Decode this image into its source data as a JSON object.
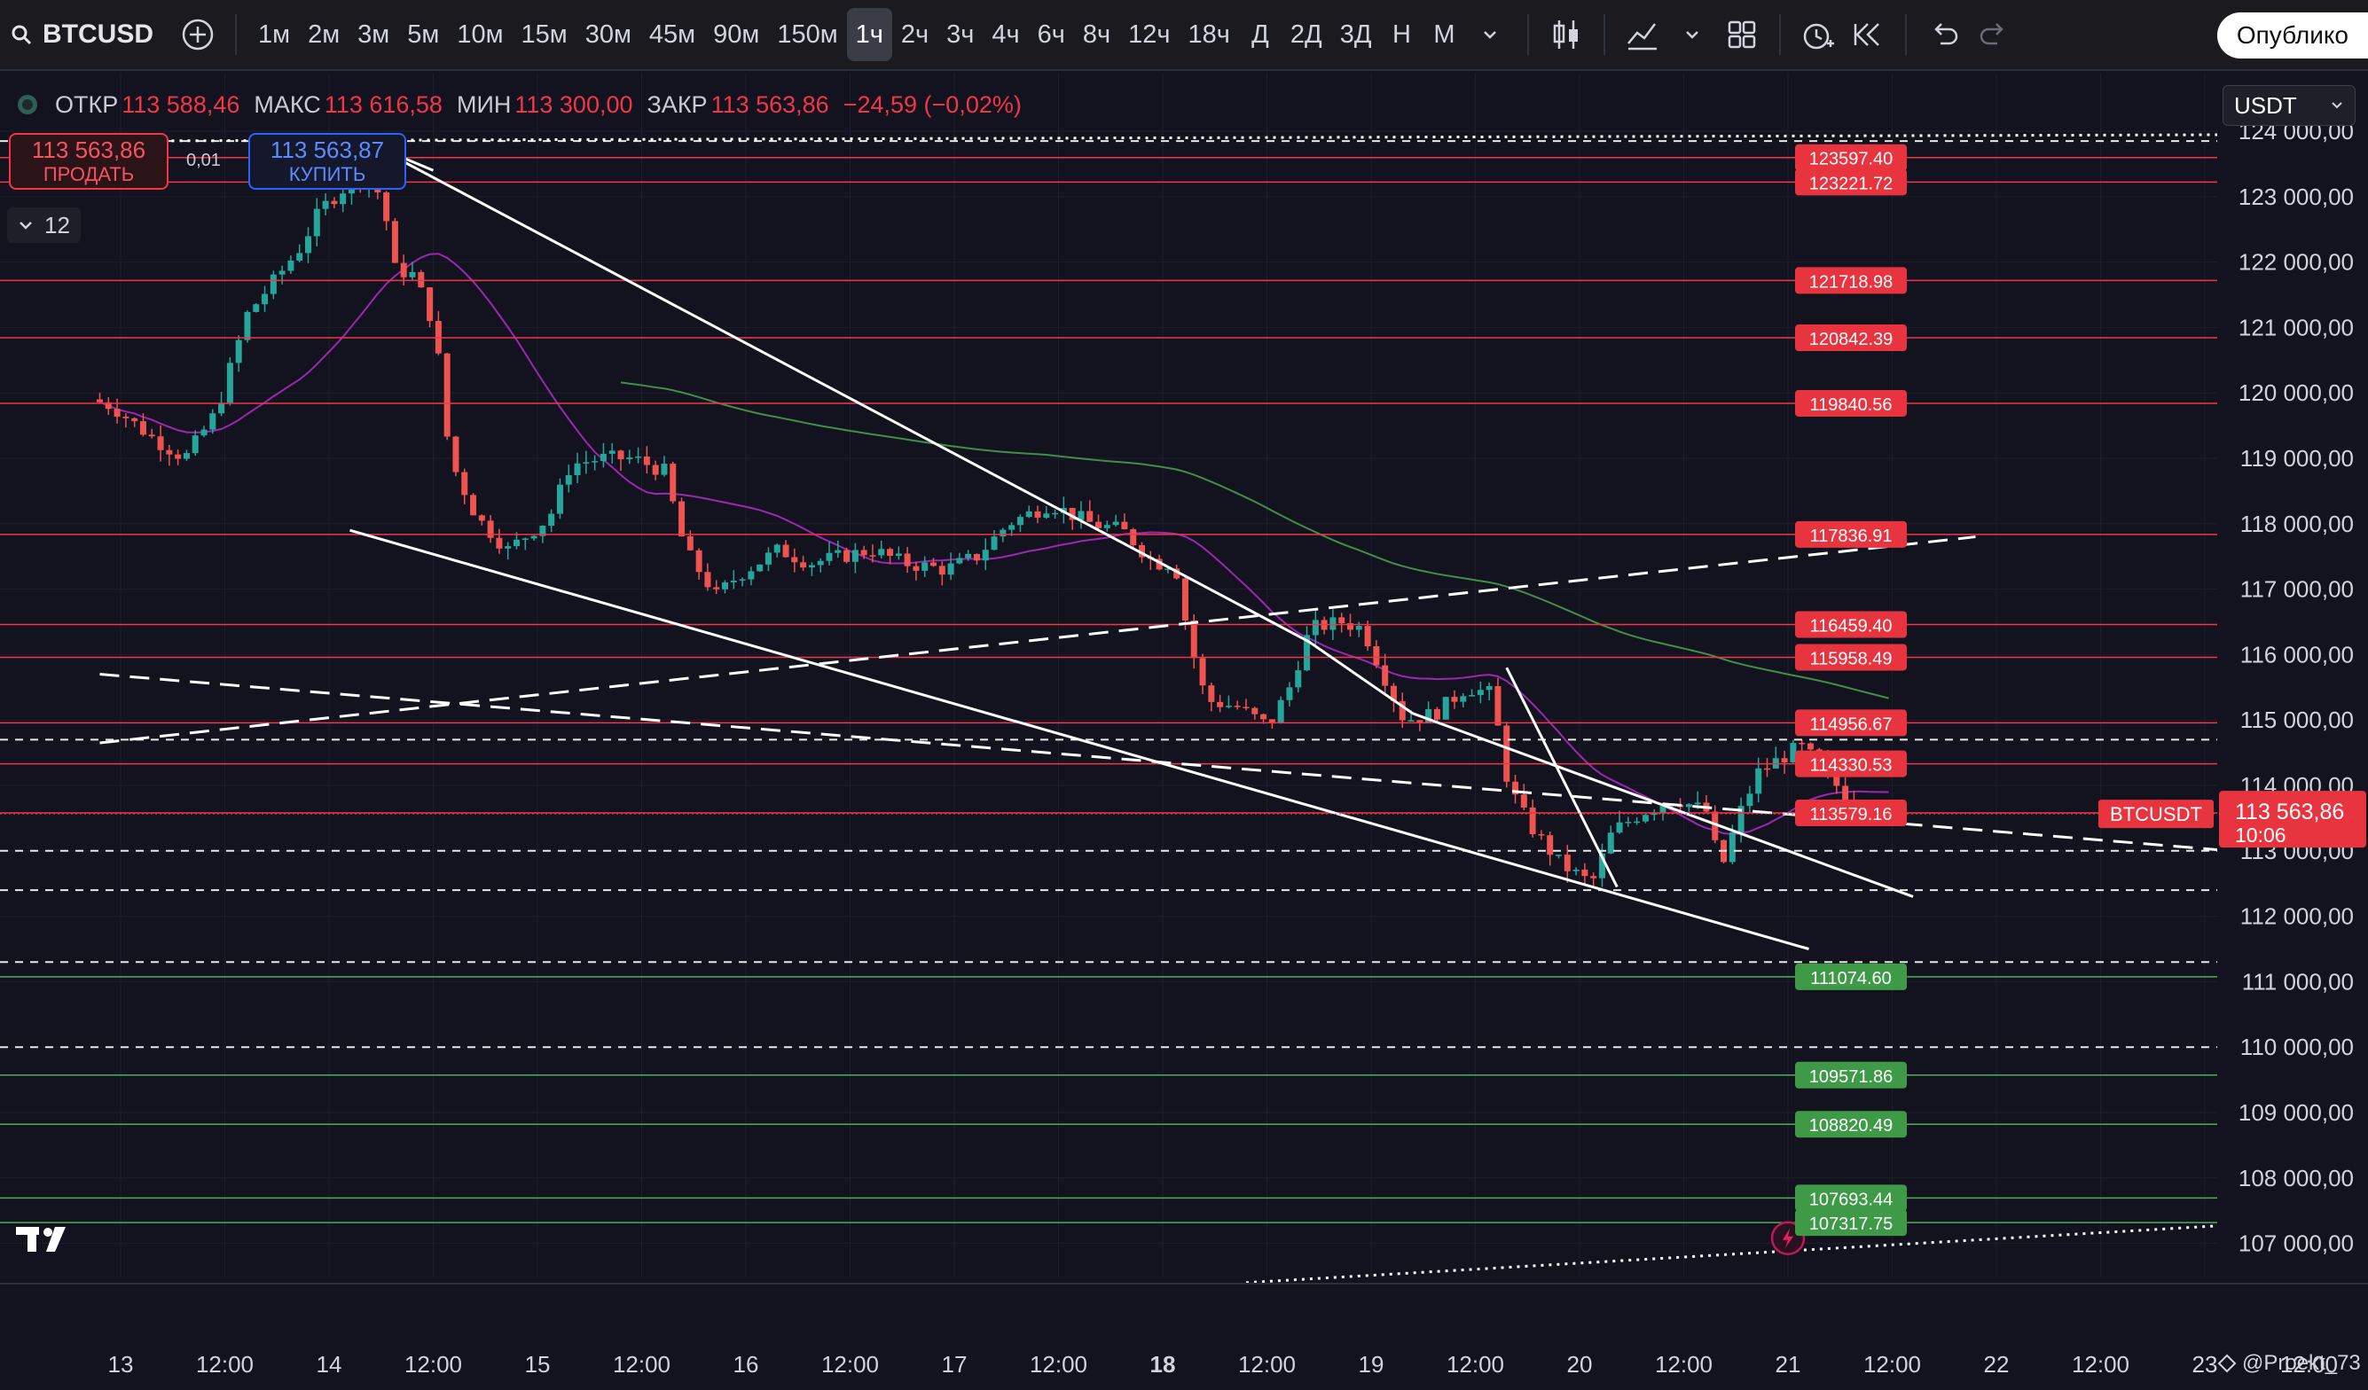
{
  "toolbar": {
    "symbol": "BTCUSD",
    "timeframes": [
      "1м",
      "2м",
      "3м",
      "5м",
      "10м",
      "15м",
      "30м",
      "45м",
      "90м",
      "150м",
      "1ч",
      "2ч",
      "3ч",
      "4ч",
      "6ч",
      "8ч",
      "12ч",
      "18ч",
      "Д",
      "2Д",
      "3Д",
      "Н",
      "М"
    ],
    "active_timeframe": "1ч",
    "publish_label": "Опублико"
  },
  "ohlc": {
    "open_label": "ОТКР",
    "open": "113 588,46",
    "high_label": "МАКС",
    "high": "113 616,58",
    "low_label": "МИН",
    "low": "113 300,00",
    "close_label": "ЗАКР",
    "close": "113 563,86",
    "change": "−24,59 (−0,02%)"
  },
  "trade": {
    "sell_price": "113 563,86",
    "sell_label": "ПРОДАТЬ",
    "buy_price": "113 563,87",
    "buy_label": "КУПИТЬ",
    "spread": "0,01"
  },
  "indicators_count": "12",
  "currency": "USDT",
  "watermark": "@Proekt_73",
  "colors": {
    "background": "#131320",
    "bull": "#26a69a",
    "bear": "#ef5350",
    "resistance": "#f23645",
    "support": "#4caf50",
    "ma_fast": "#9c27b0",
    "ma_slow": "#4caf50"
  },
  "chart_data": {
    "type": "candlestick",
    "price_axis": {
      "range": [
        106400,
        124300
      ],
      "ticks": [
        "124 000,00",
        "123 000,00",
        "122 000,00",
        "121 000,00",
        "120 000,00",
        "119 000,00",
        "118 000,00",
        "117 000,00",
        "116 000,00",
        "115 000,00",
        "114 000,00",
        "113 000,00",
        "112 000,00",
        "111 000,00",
        "110 000,00",
        "109 000,00",
        "108 000,00",
        "107 000,00"
      ],
      "tick_values": [
        124000,
        123000,
        122000,
        121000,
        120000,
        119000,
        118000,
        117000,
        116000,
        115000,
        114000,
        113000,
        112000,
        111000,
        110000,
        109000,
        108000,
        107000
      ]
    },
    "time_axis": {
      "labels": [
        "13",
        "12:00",
        "14",
        "12:00",
        "15",
        "12:00",
        "16",
        "12:00",
        "17",
        "12:00",
        "18",
        "12:00",
        "19",
        "12:00",
        "20",
        "12:00",
        "21",
        "12:00",
        "22",
        "12:00",
        "23",
        "12:00"
      ],
      "label_values": [
        13,
        13.5,
        14,
        14.5,
        15,
        15.5,
        16,
        16.5,
        17,
        17.5,
        18,
        18.5,
        19,
        19.5,
        20,
        20.5,
        21,
        21.5,
        22,
        22.5,
        23,
        23.5
      ],
      "bold": [
        "18"
      ]
    },
    "resistance_levels": [
      "123597.40",
      "123221.72",
      "121718.98",
      "120842.39",
      "119840.56",
      "117836.91",
      "116459.40",
      "115958.49",
      "114956.67",
      "114330.53",
      "113579.16"
    ],
    "support_levels": [
      "111074.60",
      "109571.86",
      "108820.49",
      "107693.44",
      "107317.75"
    ],
    "dashed_levels": [
      123850,
      114700,
      113000,
      112400,
      111300,
      110000
    ],
    "current_price": {
      "symbol": "BTCUSDT",
      "price": "113 563,86",
      "countdown": "10:06"
    },
    "trend_lines": [
      {
        "style": "solid",
        "points": [
          [
            14.2,
            123800
          ],
          [
            18.7,
            116200
          ],
          [
            19.2,
            115100
          ],
          [
            21.6,
            112300
          ]
        ]
      },
      {
        "style": "solid",
        "points": [
          [
            14.1,
            117900
          ],
          [
            21.1,
            111500
          ]
        ]
      },
      {
        "style": "solid",
        "points": [
          [
            19.65,
            115800
          ],
          [
            20.18,
            112450
          ]
        ]
      },
      {
        "style": "solid",
        "points": [
          [
            14.2,
            123800
          ],
          [
            14.5,
            123400
          ]
        ]
      },
      {
        "style": "dashed",
        "points": [
          [
            12.9,
            114650
          ],
          [
            21.9,
            117800
          ]
        ]
      },
      {
        "style": "dashed",
        "points": [
          [
            12.9,
            115700
          ],
          [
            23.5,
            112900
          ]
        ]
      },
      {
        "style": "dotted",
        "points": [
          [
            18.4,
            106400
          ],
          [
            23.5,
            107350
          ]
        ]
      },
      {
        "style": "dotted",
        "points": [
          [
            12.9,
            123850
          ],
          [
            23.5,
            123950
          ]
        ]
      }
    ],
    "candles_close_path": [
      [
        12.9,
        119900
      ],
      [
        13.0,
        119800
      ],
      [
        13.2,
        119300
      ],
      [
        13.35,
        119000
      ],
      [
        13.5,
        119700
      ],
      [
        13.65,
        121200
      ],
      [
        13.8,
        121800
      ],
      [
        13.9,
        122200
      ],
      [
        14.0,
        122800
      ],
      [
        14.1,
        123100
      ],
      [
        14.2,
        123300
      ],
      [
        14.3,
        123000
      ],
      [
        14.35,
        121900
      ],
      [
        14.45,
        121800
      ],
      [
        14.55,
        121000
      ],
      [
        14.62,
        119000
      ],
      [
        14.75,
        118100
      ],
      [
        14.9,
        117600
      ],
      [
        15.1,
        118100
      ],
      [
        15.2,
        118900
      ],
      [
        15.35,
        119000
      ],
      [
        15.5,
        119000
      ],
      [
        15.65,
        118800
      ],
      [
        15.75,
        117600
      ],
      [
        15.9,
        116900
      ],
      [
        16.0,
        117200
      ],
      [
        16.2,
        117600
      ],
      [
        16.35,
        117400
      ],
      [
        16.5,
        117500
      ],
      [
        16.65,
        117600
      ],
      [
        16.8,
        117400
      ],
      [
        17.0,
        117300
      ],
      [
        17.15,
        117500
      ],
      [
        17.3,
        118000
      ],
      [
        17.5,
        118300
      ],
      [
        17.7,
        118000
      ],
      [
        17.85,
        117900
      ],
      [
        18.0,
        117400
      ],
      [
        18.1,
        117400
      ],
      [
        18.17,
        116200
      ],
      [
        18.25,
        115300
      ],
      [
        18.4,
        115200
      ],
      [
        18.55,
        114900
      ],
      [
        18.65,
        115500
      ],
      [
        18.75,
        116400
      ],
      [
        18.9,
        116500
      ],
      [
        19.0,
        116400
      ],
      [
        19.1,
        115700
      ],
      [
        19.2,
        115000
      ],
      [
        19.35,
        115100
      ],
      [
        19.5,
        115500
      ],
      [
        19.62,
        115400
      ],
      [
        19.7,
        114000
      ],
      [
        19.8,
        113400
      ],
      [
        19.95,
        112800
      ],
      [
        20.1,
        112500
      ],
      [
        20.2,
        113300
      ],
      [
        20.35,
        113600
      ],
      [
        20.5,
        113800
      ],
      [
        20.65,
        113600
      ],
      [
        20.72,
        112700
      ],
      [
        20.8,
        113500
      ],
      [
        20.9,
        114200
      ],
      [
        21.0,
        114400
      ],
      [
        21.1,
        114600
      ],
      [
        21.2,
        114300
      ],
      [
        21.3,
        113900
      ],
      [
        21.4,
        113700
      ],
      [
        21.5,
        113560
      ]
    ]
  }
}
